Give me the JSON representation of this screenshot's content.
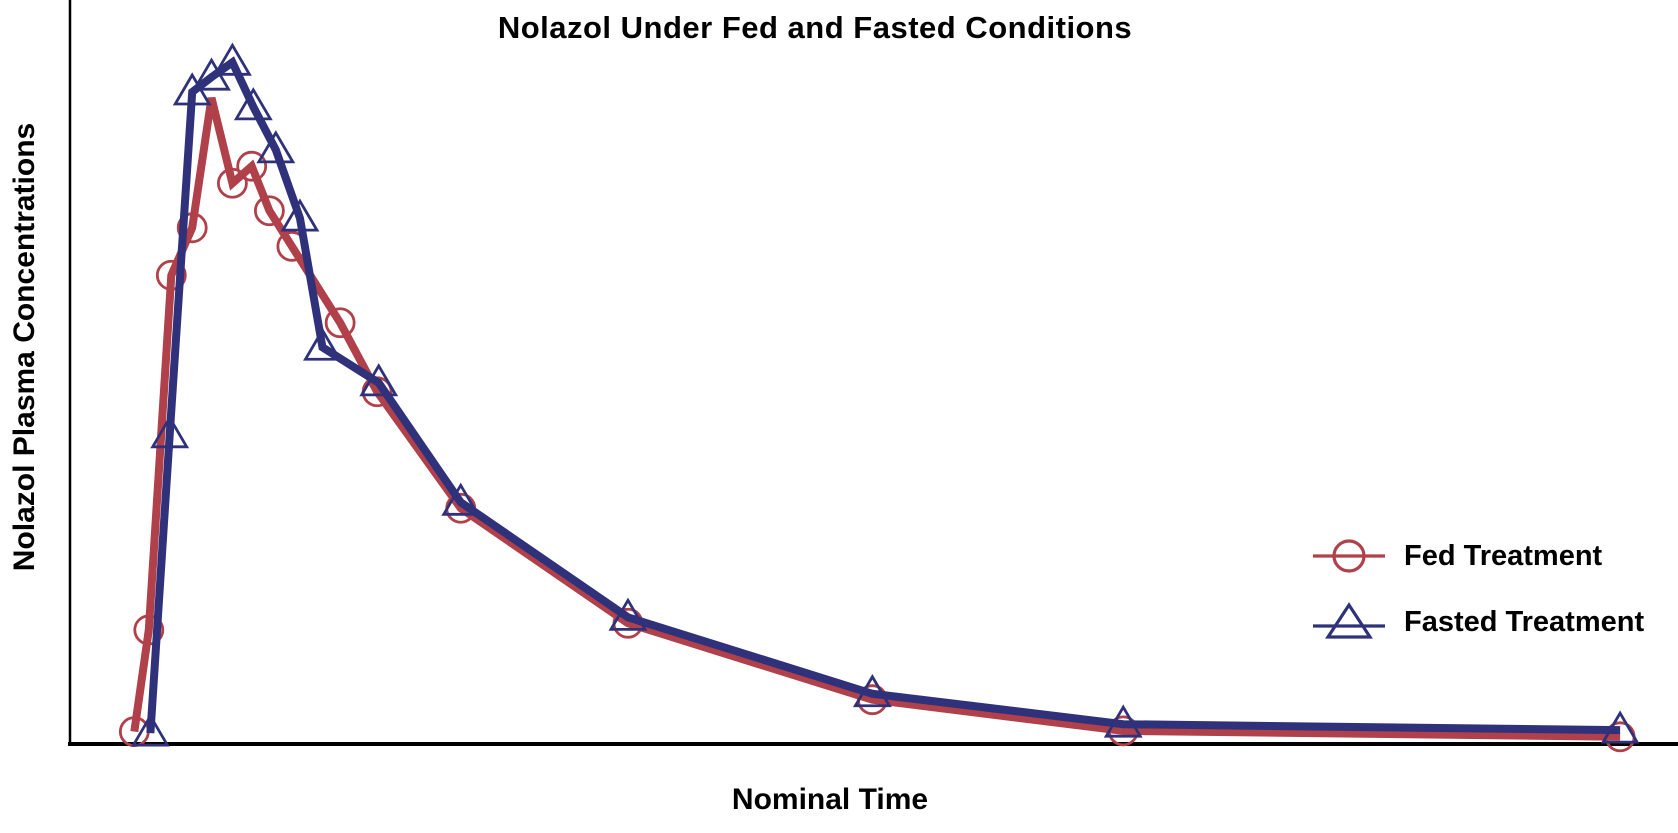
{
  "chart_data": {
    "type": "line",
    "title": "Nolazol Under Fed and Fasted Conditions",
    "xlabel": "Nominal Time",
    "ylabel": "Nolazol Plasma Concentrations",
    "axes": {
      "x_tick_labels": [],
      "y_tick_labels": [],
      "grid": false,
      "note": "Both axes are unlabeled in the figure; point values below are relative units (percent of visible plot range, x: 0-100 left-to-right, y: 0-100 baseline-to-top)."
    },
    "legend_position": "right-middle",
    "series": [
      {
        "id": "fed-treatment",
        "name": "Fed Treatment",
        "marker": "circle",
        "color": "#b04049",
        "points": [
          {
            "x": 4.0,
            "y": 1.4
          },
          {
            "x": 4.9,
            "y": 15.1
          },
          {
            "x": 6.3,
            "y": 62.9
          },
          {
            "x": 7.6,
            "y": 69.3
          },
          {
            "x": 8.8,
            "y": 86.8,
            "marker": false
          },
          {
            "x": 10.1,
            "y": 75.3
          },
          {
            "x": 11.3,
            "y": 77.6
          },
          {
            "x": 12.4,
            "y": 71.6
          },
          {
            "x": 13.8,
            "y": 66.8
          },
          {
            "x": 16.8,
            "y": 56.5
          },
          {
            "x": 19.1,
            "y": 47.2
          },
          {
            "x": 24.3,
            "y": 31.5
          },
          {
            "x": 34.7,
            "y": 16.0
          },
          {
            "x": 49.9,
            "y": 5.7
          },
          {
            "x": 65.5,
            "y": 1.5
          },
          {
            "x": 96.4,
            "y": 0.7
          }
        ]
      },
      {
        "id": "fasted-treatment",
        "name": "Fasted Treatment",
        "marker": "triangle",
        "color": "#2f327a",
        "points": [
          {
            "x": 5.0,
            "y": 1.2
          },
          {
            "x": 6.2,
            "y": 41.4
          },
          {
            "x": 7.6,
            "y": 87.6
          },
          {
            "x": 8.8,
            "y": 89.6
          },
          {
            "x": 10.1,
            "y": 91.6
          },
          {
            "x": 11.4,
            "y": 85.6
          },
          {
            "x": 12.8,
            "y": 79.8
          },
          {
            "x": 14.3,
            "y": 70.6
          },
          {
            "x": 15.7,
            "y": 53.2
          },
          {
            "x": 19.2,
            "y": 48.4
          },
          {
            "x": 24.3,
            "y": 32.3
          },
          {
            "x": 34.7,
            "y": 16.8
          },
          {
            "x": 49.9,
            "y": 6.5
          },
          {
            "x": 65.5,
            "y": 2.4
          },
          {
            "x": 96.4,
            "y": 1.6
          }
        ]
      }
    ]
  }
}
